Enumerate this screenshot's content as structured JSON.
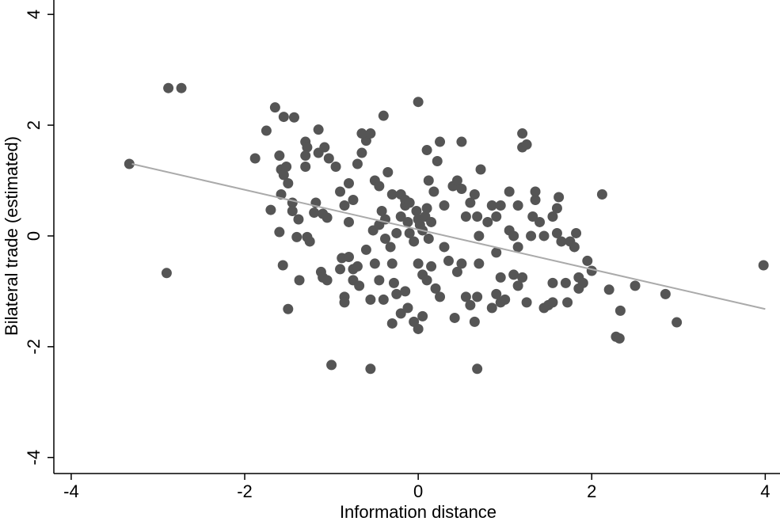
{
  "chart_data": {
    "type": "scatter",
    "x_label": "Information distance",
    "y_label": "Bilateral trade (estimated)",
    "xlim": [
      -4.2,
      4.17
    ],
    "ylim": [
      -4.29,
      4.26
    ],
    "xticks": [
      -4,
      -2,
      0,
      2,
      4
    ],
    "yticks": [
      -4,
      -2,
      0,
      2,
      4
    ],
    "color": "#555555",
    "x": [
      -3.33,
      -2.88,
      -2.73,
      -2.9,
      -1.65,
      -1.75,
      -1.88,
      -1.55,
      -1.43,
      -1.7,
      -1.6,
      -1.56,
      -1.5,
      -1.37,
      -1,
      -0.55,
      0.68,
      -0.4,
      0,
      2.12,
      2.5,
      2.85,
      2.98,
      3.98,
      2.28,
      2.32,
      2.33,
      2.2,
      1.95,
      2.0,
      -1.6,
      -1.58,
      -1.52,
      -1.55,
      -1.5,
      -1.58,
      -1.45,
      -1.45,
      -1.38,
      -1.4,
      -1.28,
      -1.25,
      -1.3,
      -1.28,
      -1.3,
      -1.3,
      -1.15,
      -1.15,
      -1.2,
      -1.18,
      -1.1,
      -1.05,
      -1.08,
      -1.03,
      -0.95,
      -0.9,
      -1.12,
      -1.1,
      -1.05,
      -0.9,
      -0.88,
      -0.8,
      -0.85,
      -0.85,
      -0.75,
      -0.75,
      -0.7,
      -0.68,
      -0.6,
      -0.55,
      -0.85,
      -0.8,
      -0.8,
      -0.75,
      -0.7,
      -0.65,
      -0.6,
      -0.65,
      -0.55,
      -0.5,
      -0.45,
      -0.42,
      -0.38,
      -0.35,
      -0.3,
      -0.32,
      -0.3,
      -0.28,
      -0.25,
      -0.3,
      -0.2,
      -0.15,
      -0.4,
      -0.45,
      -0.5,
      -0.52,
      -0.45,
      -0.38,
      -0.25,
      -0.2,
      -0.15,
      -0.12,
      -0.1,
      -0.05,
      -0.02,
      0,
      0.02,
      0.05,
      0.08,
      0.1,
      0.12,
      0.15,
      -0.2,
      -0.15,
      -0.1,
      0,
      0.05,
      0.1,
      0.15,
      0.2,
      0.25,
      0.05,
      0,
      -0.05,
      -0.12,
      0.18,
      0.12,
      0.22,
      0.25,
      0.1,
      0.3,
      0.3,
      0.35,
      0.4,
      0.45,
      0.5,
      0.45,
      0.5,
      0.55,
      0.6,
      0.65,
      0.68,
      0.42,
      0.55,
      0.6,
      0.65,
      0.68,
      0.7,
      0.7,
      0.72,
      0.5,
      0.8,
      0.85,
      0.9,
      0.95,
      0.9,
      0.95,
      0.85,
      0.9,
      0.95,
      1.0,
      1.05,
      1.1,
      1.15,
      1.05,
      1.15,
      1.2,
      1.2,
      1.25,
      1.1,
      1.15,
      1.2,
      1.25,
      1.3,
      1.32,
      1.35,
      1.35,
      1.4,
      1.45,
      1.45,
      1.5,
      1.55,
      1.55,
      1.55,
      1.6,
      1.62,
      1.6,
      1.65,
      1.7,
      1.72,
      1.75,
      1.8,
      1.82,
      1.85,
      1.9,
      1.85
    ],
    "values": [
      1.3,
      2.67,
      2.67,
      -0.67,
      2.32,
      1.9,
      1.4,
      2.15,
      2.14,
      0.47,
      0.07,
      -0.53,
      -1.32,
      -0.8,
      -2.33,
      -2.4,
      -2.4,
      2.17,
      2.42,
      0.75,
      -0.9,
      -1.05,
      -1.56,
      -0.53,
      -1.82,
      -1.85,
      -1.35,
      -0.97,
      -0.45,
      -0.63,
      1.45,
      1.2,
      1.25,
      1.1,
      0.95,
      0.75,
      0.6,
      0.45,
      0.3,
      -0.02,
      -0.02,
      -0.1,
      1.7,
      1.6,
      1.45,
      1.25,
      1.92,
      1.5,
      0.42,
      0.6,
      0.4,
      0.33,
      1.6,
      1.4,
      1.25,
      0.8,
      -0.65,
      -0.75,
      -0.8,
      -0.6,
      -0.4,
      -0.38,
      -1.1,
      -1.2,
      -0.8,
      -0.6,
      -0.55,
      -0.9,
      -0.25,
      -1.15,
      0.55,
      0.25,
      0.95,
      0.65,
      1.3,
      1.5,
      1.72,
      1.85,
      1.85,
      1.0,
      0.9,
      0.45,
      0.3,
      1.15,
      0.75,
      -0.2,
      -0.5,
      -0.85,
      -1.05,
      -1.58,
      -1.4,
      -1.0,
      -1.15,
      -0.8,
      -0.5,
      0.1,
      0.2,
      -0.05,
      0.05,
      0.35,
      0.55,
      0.25,
      0.05,
      -0.1,
      0.45,
      0.3,
      0.2,
      0.1,
      0.35,
      0.5,
      -0.05,
      0.25,
      0.75,
      0.65,
      0.6,
      -0.5,
      -0.7,
      -0.8,
      -0.55,
      -0.95,
      -1.1,
      -1.45,
      -1.68,
      -1.55,
      -1.3,
      0.8,
      1.0,
      1.35,
      1.7,
      1.55,
      0.55,
      -0.2,
      -0.45,
      0.9,
      1.0,
      0.85,
      -0.65,
      -0.5,
      -1.1,
      -1.25,
      -1.55,
      -1.1,
      -1.48,
      0.35,
      0.6,
      0.75,
      0.35,
      0,
      -0.5,
      1.2,
      1.7,
      0.25,
      0.55,
      0.35,
      0.55,
      -0.3,
      -0.75,
      -1.3,
      -1.05,
      -1.2,
      -1.15,
      0.1,
      0,
      -0.2,
      0.8,
      0.55,
      1.85,
      1.6,
      1.65,
      -0.7,
      -0.9,
      -0.75,
      -1.2,
      0,
      0.35,
      0.65,
      0.8,
      0.25,
      0,
      -1.3,
      -1.25,
      -1.2,
      -0.85,
      0.35,
      0.5,
      0.7,
      0.05,
      -0.1,
      -0.85,
      -1.2,
      -0.1,
      -0.2,
      0.05,
      -0.75,
      -0.85,
      -0.95
    ],
    "fit_line": {
      "x": [
        -3.3,
        4
      ],
      "y": [
        1.3,
        -1.32
      ],
      "color": "#aaaaaa"
    }
  }
}
